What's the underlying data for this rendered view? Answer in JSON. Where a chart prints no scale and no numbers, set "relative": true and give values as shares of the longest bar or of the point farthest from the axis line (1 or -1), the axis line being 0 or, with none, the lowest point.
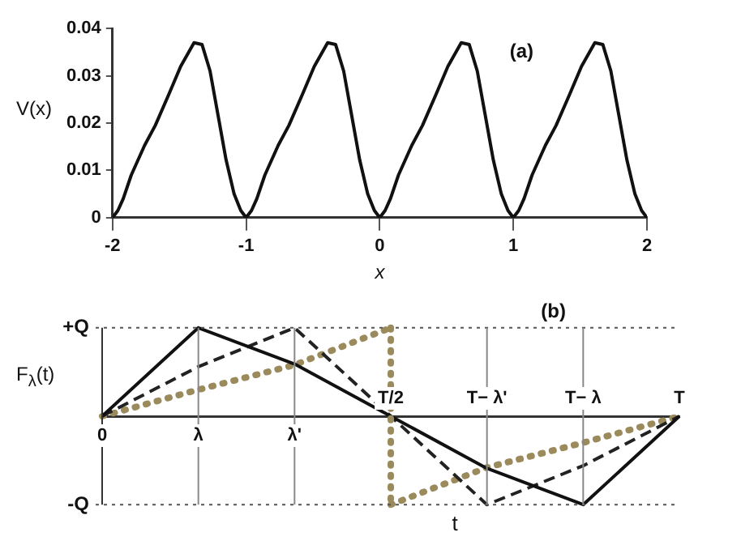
{
  "chart_data": [
    {
      "type": "line",
      "xlabel": "x",
      "ylabel": "V(x)",
      "annotations": [
        "(a)"
      ],
      "xlim": [
        -2,
        2
      ],
      "xticks": [
        -2,
        -1,
        0,
        1,
        2
      ],
      "ylim": [
        0,
        0.04
      ],
      "yticks": [
        0,
        0.01,
        0.02,
        0.03,
        0.04
      ],
      "legend": false,
      "marker": "none",
      "x": [
        -2,
        -1.96,
        -1.92,
        -1.86,
        -1.76,
        -1.68,
        -1.58,
        -1.49,
        -1.39,
        -1.33,
        -1.27,
        -1.21,
        -1.15,
        -1.09,
        -1.04,
        -1,
        -0.96,
        -0.92,
        -0.86,
        -0.76,
        -0.68,
        -0.58,
        -0.49,
        -0.39,
        -0.33,
        -0.27,
        -0.21,
        -0.15,
        -0.09,
        -0.04,
        0,
        0.04,
        0.08,
        0.14,
        0.24,
        0.32,
        0.42,
        0.51,
        0.61,
        0.67,
        0.73,
        0.79,
        0.85,
        0.91,
        0.96,
        1,
        1.04,
        1.08,
        1.14,
        1.24,
        1.32,
        1.42,
        1.51,
        1.61,
        1.67,
        1.73,
        1.79,
        1.85,
        1.91,
        1.96,
        2
      ],
      "series": [
        {
          "color": "#111111",
          "line_style": "solid",
          "values": [
            0,
            0.0015,
            0.004,
            0.009,
            0.0153,
            0.0195,
            0.026,
            0.032,
            0.037,
            0.0366,
            0.031,
            0.0216,
            0.0122,
            0.005,
            0.0015,
            0,
            0.0015,
            0.004,
            0.009,
            0.0153,
            0.0195,
            0.026,
            0.032,
            0.037,
            0.0366,
            0.031,
            0.0216,
            0.0122,
            0.005,
            0.0015,
            0,
            0.0015,
            0.004,
            0.009,
            0.0153,
            0.0195,
            0.026,
            0.032,
            0.037,
            0.0366,
            0.031,
            0.0216,
            0.0122,
            0.005,
            0.0015,
            0,
            0.0015,
            0.004,
            0.009,
            0.0153,
            0.0195,
            0.026,
            0.032,
            0.037,
            0.0366,
            0.031,
            0.0216,
            0.0122,
            0.005,
            0.0015,
            0
          ]
        }
      ]
    },
    {
      "type": "line",
      "relative": true,
      "xlabel": "t",
      "ylabel": "F$_{λ}$(t)",
      "annotations": [
        "(b)"
      ],
      "legend": false,
      "marker": "none",
      "categories": [
        "0",
        "λ",
        "λ'",
        "T/2",
        "T− λ'",
        "T− λ",
        "T"
      ],
      "ref_lines": [
        {
          "axis": "x",
          "value": "0",
          "color": "#333333"
        },
        {
          "axis": "y",
          "value": 1,
          "label": "+Q",
          "color": "#555555",
          "line_style": "dotted"
        },
        {
          "axis": "y",
          "value": -1,
          "label": "-Q",
          "color": "#555555",
          "line_style": "dotted"
        },
        {
          "axis": "x",
          "value": "λ",
          "color": "#888888"
        },
        {
          "axis": "x",
          "value": "λ'",
          "color": "#888888"
        },
        {
          "axis": "x",
          "value": "T− λ'",
          "color": "#888888"
        },
        {
          "axis": "x",
          "value": "T− λ",
          "color": "#888888"
        },
        {
          "axis": "x",
          "value": "T/2",
          "color": "#9a8a5c",
          "line_style": "dotted"
        }
      ],
      "series": [
        {
          "color": "#111111",
          "line_style": "solid",
          "values": [
            0,
            1,
            0.59,
            0,
            -0.59,
            -1,
            0
          ]
        },
        {
          "color": "#222222",
          "line_style": "dashed",
          "values": [
            0,
            0.56,
            1,
            0,
            -1,
            -0.56,
            0
          ]
        },
        {
          "color": "#9a8a5c",
          "line_style": "dotted",
          "values": [
            0,
            0.3,
            0.58,
            1,
            null,
            null,
            null
          ]
        },
        {
          "color": "#9a8a5c",
          "line_style": "dotted",
          "values": [
            null,
            null,
            null,
            -1,
            -0.58,
            -0.3,
            0
          ]
        }
      ]
    }
  ]
}
